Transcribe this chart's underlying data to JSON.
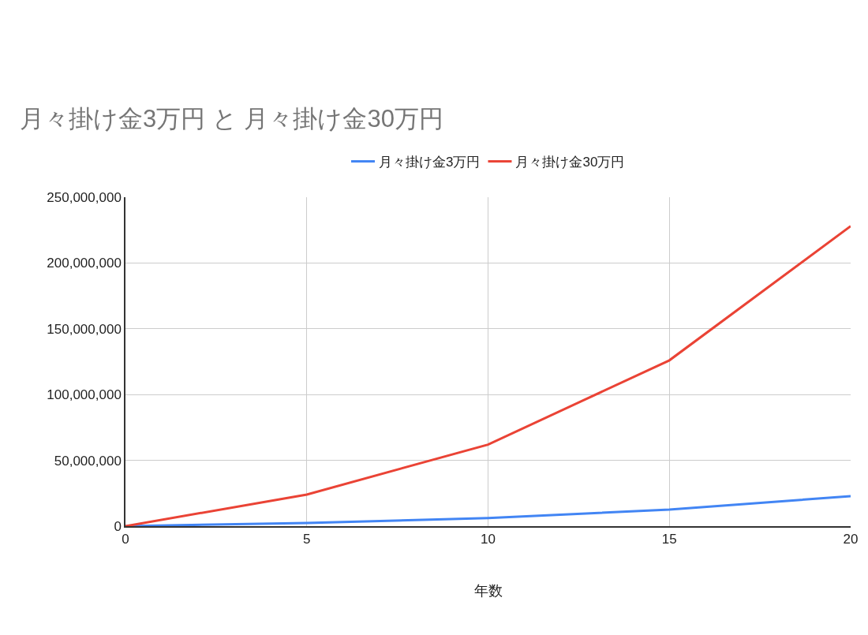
{
  "chart_data": {
    "type": "line",
    "title": "月々掛け金3万円 と 月々掛け金30万円",
    "xlabel": "年数",
    "x": [
      0,
      5,
      10,
      15,
      20
    ],
    "series": [
      {
        "name": "月々掛け金3万円",
        "color": "#4285f4",
        "values": [
          0,
          2400000,
          6200000,
          12600000,
          22800000
        ]
      },
      {
        "name": "月々掛け金30万円",
        "color": "#ea4335",
        "values": [
          0,
          24000000,
          62000000,
          126000000,
          228000000
        ]
      }
    ],
    "xlim": [
      0,
      20
    ],
    "xticks": [
      0,
      5,
      10,
      15,
      20
    ],
    "ylim": [
      0,
      250000000
    ],
    "yticks": [
      0,
      {
        "value": 50000000,
        "label": "50,000,000"
      },
      {
        "value": 100000000,
        "label": "100,000,000"
      },
      {
        "value": 150000000,
        "label": "150,000,000"
      },
      {
        "value": 200000000,
        "label": "200,000,000"
      },
      {
        "value": 250000000,
        "label": "250,000,000"
      }
    ],
    "grid": true,
    "legend": "top",
    "line_style": "solid"
  }
}
